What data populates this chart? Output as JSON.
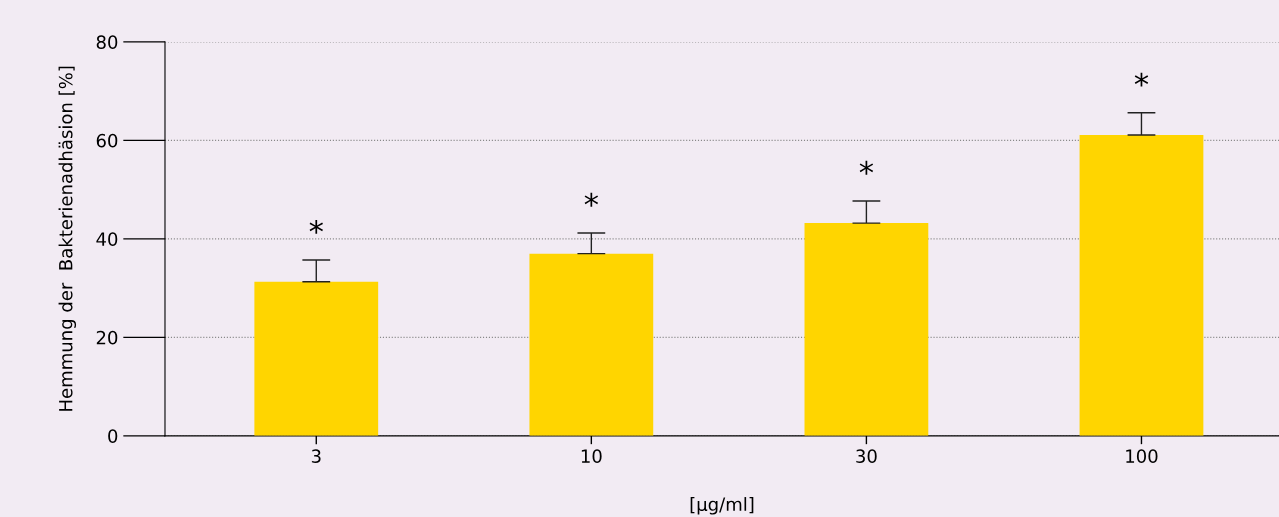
{
  "chart_data": {
    "type": "bar",
    "xlabel": "[µg/ml]",
    "ylabel": "Hemmung der  Bakterienadhäsion [%]",
    "categories": [
      "3",
      "10",
      "30",
      "100"
    ],
    "values": [
      31.3,
      37.0,
      43.2,
      61.1
    ],
    "errors": [
      [
        31.3,
        35.7
      ],
      [
        37.0,
        41.2
      ],
      [
        43.2,
        47.7
      ],
      [
        61.1,
        65.6
      ]
    ],
    "color": "#ffd500",
    "ylim": [
      0,
      80
    ],
    "yticks": [
      0,
      20,
      40,
      60,
      80
    ],
    "grid": "y",
    "annotations": [
      "*",
      "*",
      "*",
      "*"
    ]
  }
}
